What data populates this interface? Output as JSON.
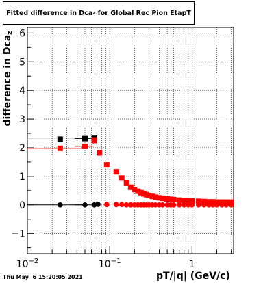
{
  "title": {
    "main": "Fitted difference in Dca",
    "subscript": "z",
    "suffix": " for Global Rec Pion EtapT"
  },
  "ylabel": {
    "main": "difference in Dca",
    "subscript": "z"
  },
  "xlabel": "pT/|q| (GeV/c)",
  "timestamp": "Thu May  6 15:20:05 2021",
  "chart_data": {
    "type": "scatter",
    "x_scale": "log",
    "xlim": [
      0.01,
      3.2
    ],
    "ylim": [
      -1.7,
      6.2
    ],
    "yticks": [
      -1,
      0,
      1,
      2,
      3,
      4,
      5,
      6
    ],
    "ytick_labels": [
      "−1",
      "0",
      "1",
      "2",
      "3",
      "4",
      "5",
      "6"
    ],
    "xtick_labels": [
      {
        "value": 0.01,
        "base": "10",
        "exp": "−2"
      },
      {
        "value": 0.1,
        "base": "10",
        "exp": "−1"
      },
      {
        "value": 1,
        "base": "1",
        "exp": ""
      }
    ],
    "grid": true,
    "colors": {
      "black_series": "#000000",
      "red_series": "#ff0000"
    },
    "series": [
      {
        "color": "#000000",
        "marker": "square",
        "x": [
          0.025,
          0.05,
          0.065
        ],
        "y": [
          2.3,
          2.32,
          2.33
        ],
        "xerr": [
          0.025,
          0.0125,
          0.0025
        ]
      },
      {
        "color": "#ff0000",
        "marker": "square",
        "x": [
          0.025,
          0.05,
          0.065,
          0.075,
          0.092,
          0.12,
          0.14,
          0.16,
          0.18,
          0.2,
          0.22,
          0.24,
          0.26,
          0.28,
          0.3,
          0.33,
          0.36,
          0.4,
          0.44,
          0.5,
          0.55,
          0.6,
          0.7,
          0.8,
          0.9,
          1.0,
          1.2,
          1.4,
          1.6,
          1.8,
          2.0,
          2.3,
          2.6,
          3.0
        ],
        "y": [
          1.98,
          2.05,
          2.25,
          1.82,
          1.4,
          1.16,
          0.94,
          0.76,
          0.62,
          0.54,
          0.48,
          0.43,
          0.39,
          0.36,
          0.33,
          0.3,
          0.27,
          0.25,
          0.23,
          0.21,
          0.2,
          0.19,
          0.17,
          0.16,
          0.15,
          0.14,
          0.13,
          0.12,
          0.11,
          0.11,
          0.1,
          0.1,
          0.1,
          0.1
        ],
        "xerr": [
          0.025,
          0.0125,
          0.0025,
          0.002,
          0,
          0,
          0,
          0,
          0,
          0,
          0,
          0,
          0,
          0,
          0,
          0,
          0,
          0,
          0,
          0,
          0,
          0,
          0,
          0,
          0,
          0,
          0,
          0,
          0,
          0,
          0,
          0,
          0,
          0
        ]
      },
      {
        "color": "#000000",
        "marker": "circle",
        "x": [
          0.025,
          0.05,
          0.065,
          0.072
        ],
        "y": [
          0.0,
          0.0,
          0.0,
          0.02
        ],
        "xerr": [
          0.025,
          0.0125,
          0.0025,
          0.002
        ]
      },
      {
        "color": "#ff0000",
        "marker": "circle",
        "x": [
          0.092,
          0.12,
          0.14,
          0.16,
          0.18,
          0.2,
          0.22,
          0.24,
          0.26,
          0.28,
          0.3,
          0.33,
          0.36,
          0.4,
          0.44,
          0.5,
          0.55,
          0.6,
          0.7,
          0.8,
          0.9,
          1.0,
          1.2,
          1.4,
          1.6,
          1.8,
          2.0,
          2.3,
          2.6,
          3.0
        ],
        "y": [
          0.01,
          0.01,
          0.01,
          0.0,
          0.0,
          0.0,
          0.0,
          0.0,
          0.0,
          0.0,
          0.0,
          0.0,
          0.0,
          0.0,
          0.0,
          0.0,
          0.0,
          0.0,
          0.0,
          0.0,
          0.0,
          0.0,
          0.0,
          0.0,
          0.0,
          0.0,
          0.0,
          0.0,
          0.0,
          0.0
        ],
        "xerr": [
          0,
          0,
          0,
          0,
          0,
          0,
          0,
          0,
          0,
          0,
          0,
          0,
          0,
          0,
          0,
          0,
          0,
          0,
          0,
          0,
          0,
          0,
          0,
          0,
          0,
          0,
          0,
          0,
          0,
          0
        ]
      }
    ]
  }
}
